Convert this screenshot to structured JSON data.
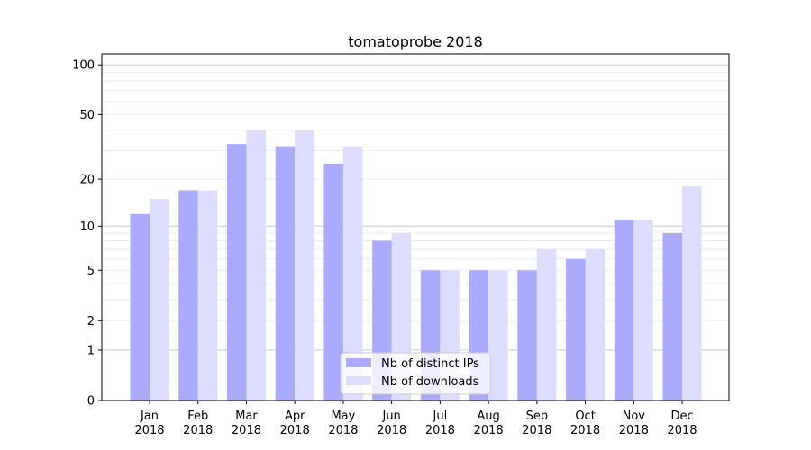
{
  "chart_data": {
    "type": "bar",
    "title": "tomatoprobe 2018",
    "xlabel": "",
    "ylabel": "",
    "yscale": "symlog",
    "ylim": [
      0,
      120
    ],
    "yticks": [
      0,
      1,
      2,
      5,
      10,
      20,
      50,
      100
    ],
    "ytick_labels": [
      "0",
      "1",
      "2",
      "5",
      "10",
      "20",
      "50",
      "100"
    ],
    "categories": [
      "Jan\n2018",
      "Feb\n2018",
      "Mar\n2018",
      "Apr\n2018",
      "May\n2018",
      "Jun\n2018",
      "Jul\n2018",
      "Aug\n2018",
      "Sep\n2018",
      "Oct\n2018",
      "Nov\n2018",
      "Dec\n2018"
    ],
    "series": [
      {
        "name": "Nb of distinct IPs",
        "color": "#aaaaff",
        "values": [
          12,
          17,
          33,
          32,
          25,
          8,
          5,
          5,
          5,
          6,
          11,
          9
        ]
      },
      {
        "name": "Nb of downloads",
        "color": "#ddddff",
        "values": [
          15,
          17,
          40,
          40,
          32,
          9,
          5,
          5,
          7,
          7,
          11,
          18
        ]
      }
    ],
    "legend": "bottom-center",
    "grid": true
  }
}
